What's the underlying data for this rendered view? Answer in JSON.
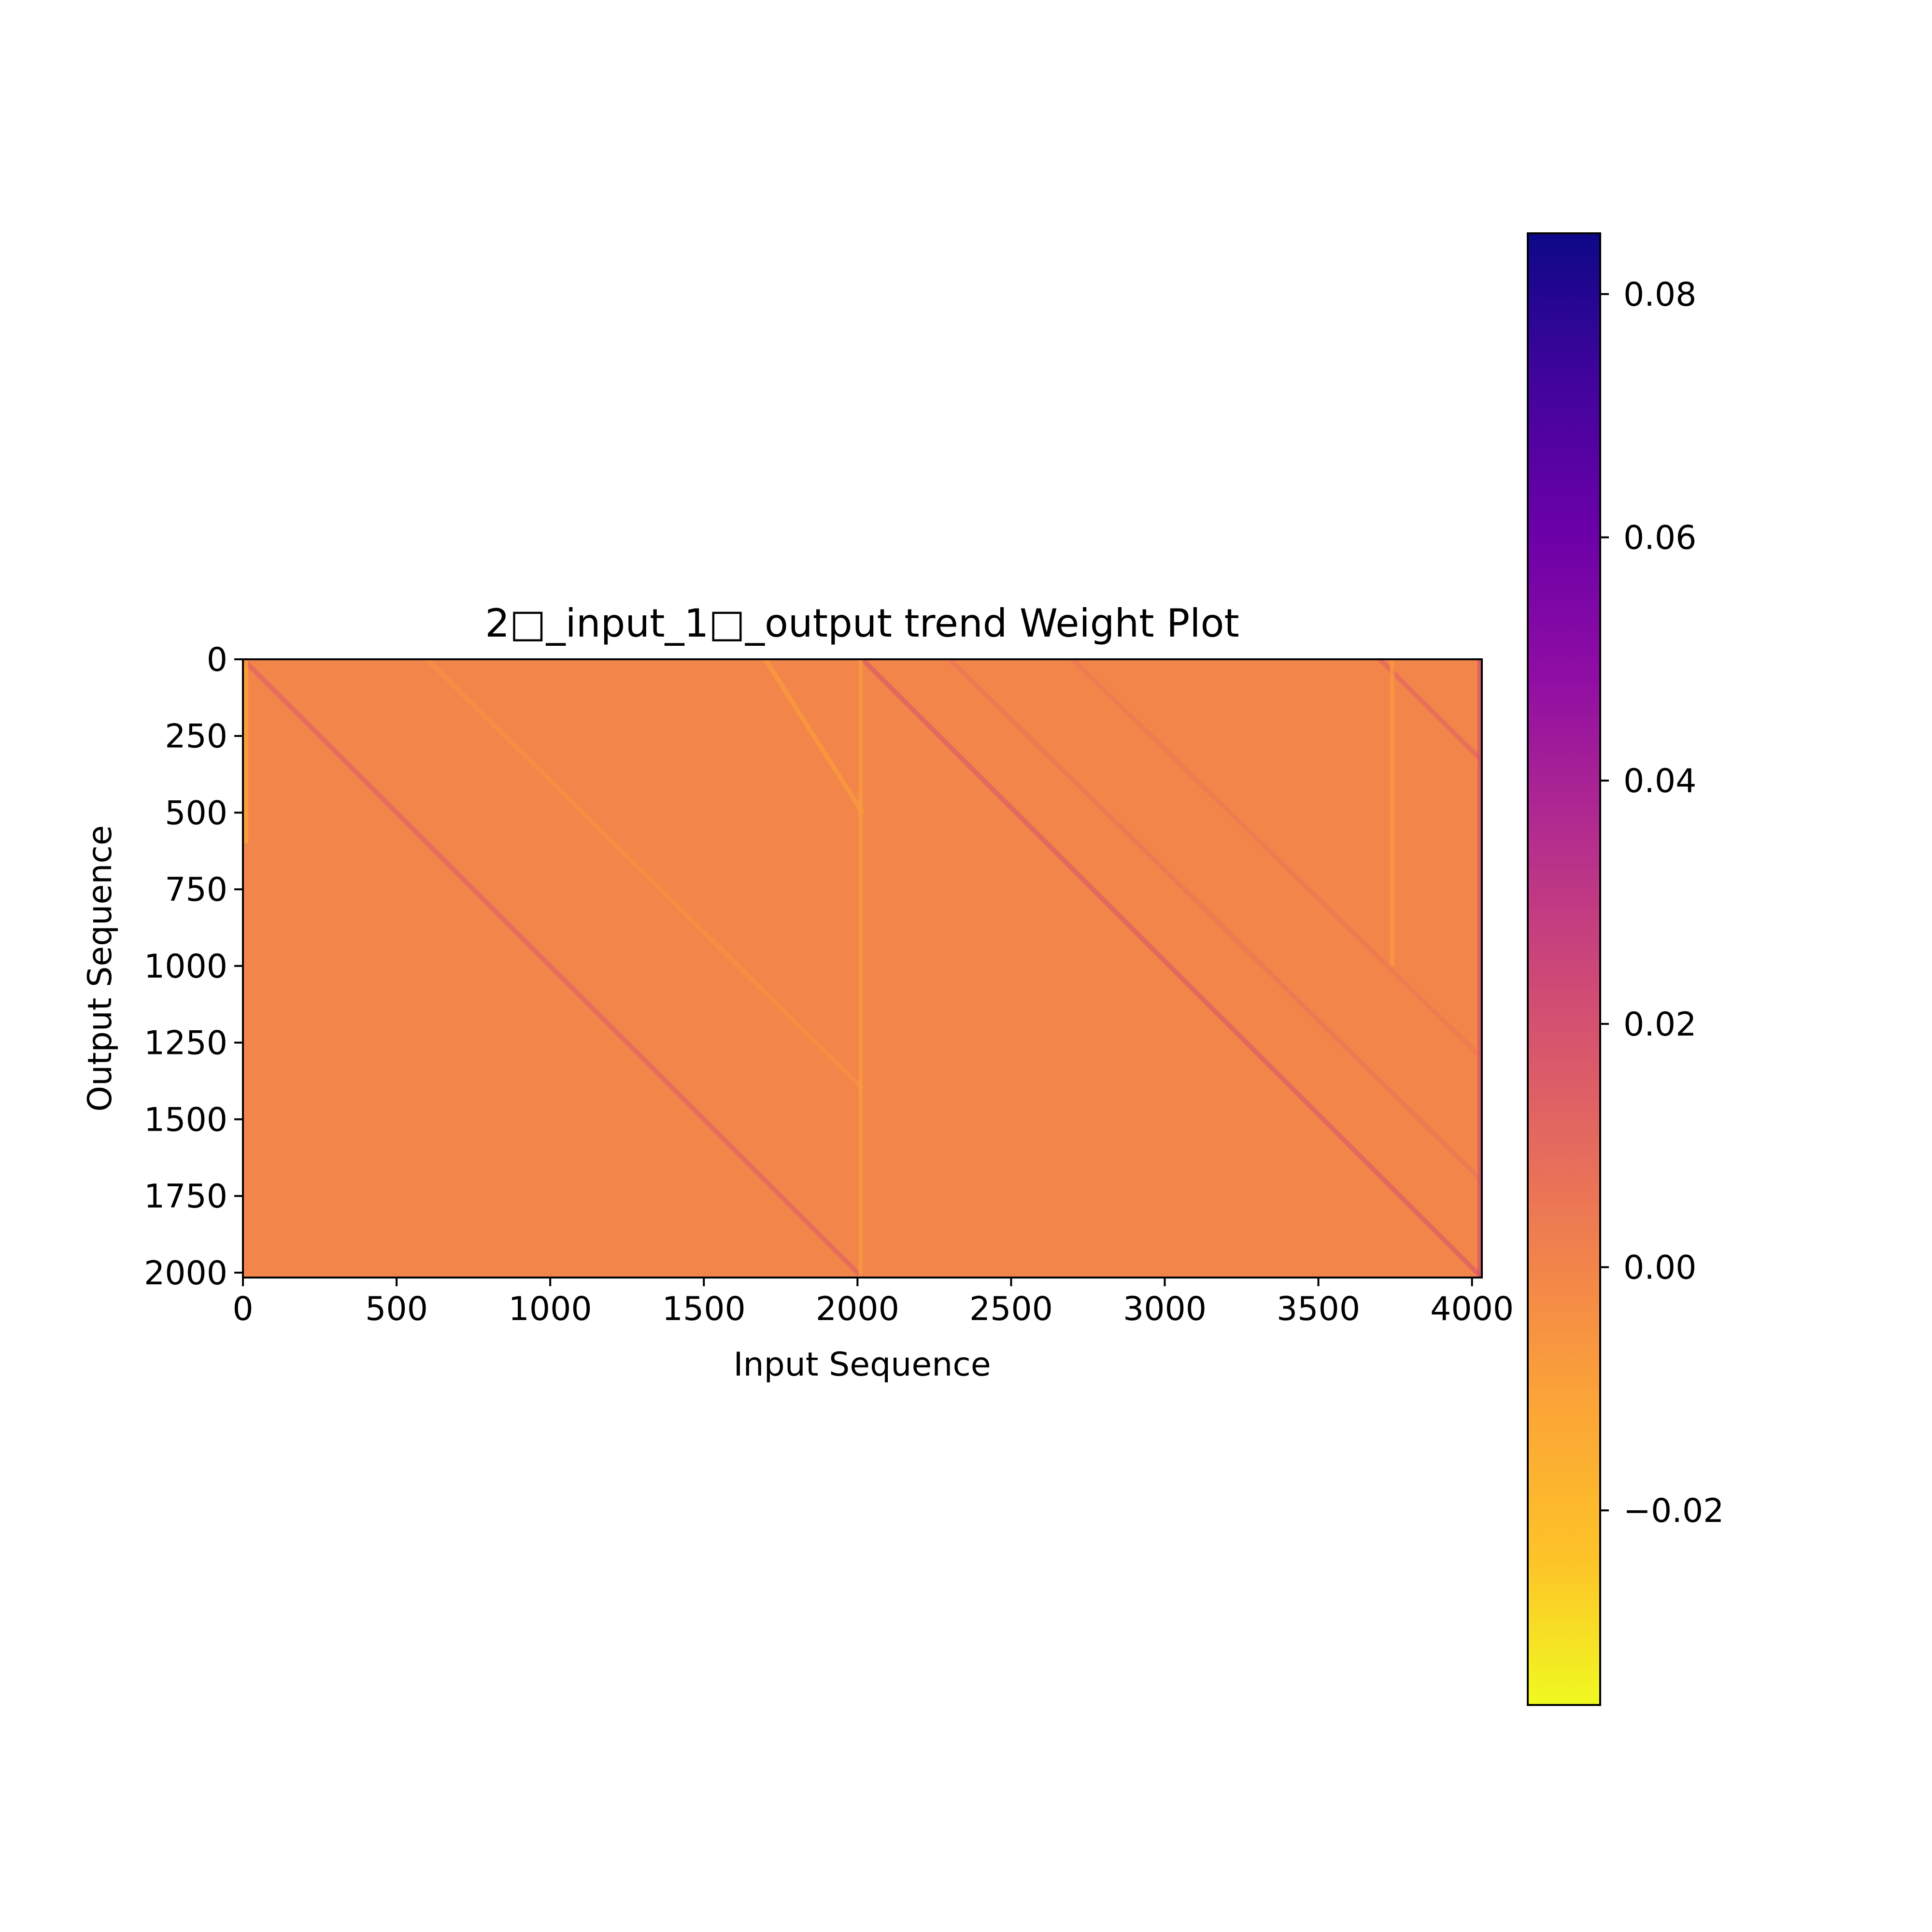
{
  "chart_data": {
    "type": "heatmap",
    "title": "2□_input_1□_output trend Weight Plot",
    "xlabel": "Input Sequence",
    "ylabel": "Output Sequence",
    "x_ticks": [
      "0",
      "500",
      "1000",
      "1500",
      "2000",
      "2500",
      "3000",
      "3500",
      "4000"
    ],
    "y_ticks": [
      "0",
      "250",
      "500",
      "750",
      "1000",
      "1250",
      "1500",
      "1750",
      "2000"
    ],
    "xlim": [
      0,
      4032
    ],
    "ylim": [
      2016,
      0
    ],
    "colormap": "plasma_r",
    "background_value": 0.0,
    "colorbar": {
      "range": [
        -0.036,
        0.085
      ],
      "ticks": [
        "−0.02",
        "0.00",
        "0.02",
        "0.04",
        "0.06",
        "0.08"
      ],
      "tick_values": [
        -0.02,
        0.0,
        0.02,
        0.04,
        0.06,
        0.08
      ]
    },
    "features": [
      {
        "kind": "diagonal",
        "x_start": 0,
        "x_end": 2016,
        "y_start": 0,
        "y_end": 2016,
        "value": 0.012
      },
      {
        "kind": "diagonal",
        "x_start": 2016,
        "x_end": 4032,
        "y_start": 0,
        "y_end": 2016,
        "value": 0.014
      },
      {
        "kind": "diagonal",
        "x_start": 3700,
        "x_end": 4032,
        "y_start": 0,
        "y_end": 330,
        "value": 0.01
      },
      {
        "kind": "diagonal",
        "x_start": 1700,
        "x_end": 2016,
        "y_start": 0,
        "y_end": 500,
        "value": -0.008
      },
      {
        "kind": "diagonal",
        "x_start": 600,
        "x_end": 2016,
        "y_start": 0,
        "y_end": 1400,
        "value": -0.004
      },
      {
        "kind": "diagonal",
        "x_start": 2300,
        "x_end": 4032,
        "y_start": 0,
        "y_end": 1700,
        "value": 0.005
      },
      {
        "kind": "diagonal",
        "x_start": 2700,
        "x_end": 4032,
        "y_start": 0,
        "y_end": 1300,
        "value": 0.004
      },
      {
        "kind": "vertical",
        "x": 2010,
        "y_start": 0,
        "y_end": 2016,
        "value": -0.008
      },
      {
        "kind": "vertical",
        "x": 3740,
        "y_start": 0,
        "y_end": 1000,
        "value": -0.008
      },
      {
        "kind": "vertical",
        "x": 10,
        "y_start": 0,
        "y_end": 600,
        "value": -0.012
      },
      {
        "kind": "vertical",
        "x": 4025,
        "y_start": 0,
        "y_end": 2016,
        "value": 0.02
      }
    ]
  }
}
